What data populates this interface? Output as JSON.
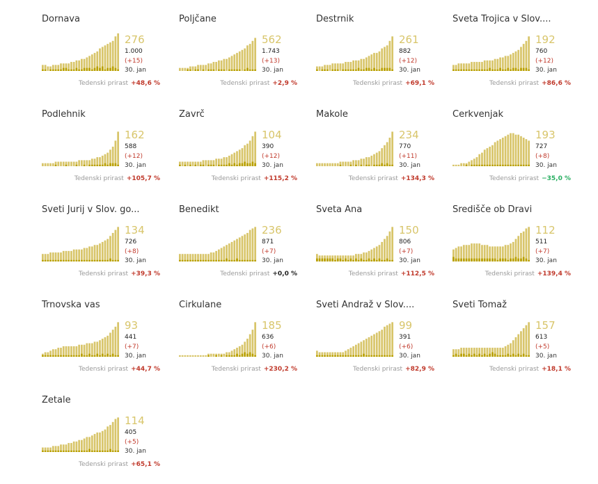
{
  "labels": {
    "weekly_growth": "Tedenski prirast",
    "date": "30. jan"
  },
  "colors": {
    "bar_total": "#d8c56a",
    "bar_daily": "#b9a000",
    "positive": "#c0392b",
    "negative": "#27ae60",
    "neutral": "#222222"
  },
  "chart_data": [
    {
      "type": "bar",
      "title": "Dornava",
      "current": "276",
      "cumulative": "1.000",
      "increase": "(+15)",
      "weekly_growth": "+48,6 %",
      "trend": "pos",
      "totals": [
        4,
        4,
        3,
        3,
        4,
        4,
        4,
        5,
        5,
        5,
        5,
        6,
        6,
        7,
        7,
        8,
        8,
        9,
        10,
        11,
        12,
        13,
        15,
        16,
        17,
        18,
        19,
        20,
        23,
        25
      ],
      "daily": [
        1,
        1,
        0,
        1,
        1,
        1,
        1,
        1,
        2,
        2,
        1,
        1,
        1,
        2,
        1,
        1,
        2,
        2,
        2,
        1,
        2,
        3,
        2,
        3,
        1,
        2,
        2,
        3,
        2,
        1
      ]
    },
    {
      "type": "bar",
      "title": "Poljčane",
      "current": "562",
      "cumulative": "1.743",
      "increase": "(+13)",
      "weekly_growth": "+2,9 %",
      "trend": "pos",
      "totals": [
        2,
        2,
        2,
        2,
        3,
        3,
        3,
        4,
        4,
        4,
        4,
        5,
        5,
        6,
        6,
        7,
        7,
        8,
        8,
        9,
        10,
        11,
        12,
        13,
        14,
        15,
        17,
        18,
        20,
        22
      ],
      "daily": [
        0,
        0,
        0,
        1,
        1,
        0,
        1,
        1,
        0,
        1,
        0,
        1,
        1,
        1,
        0,
        1,
        1,
        1,
        0,
        1,
        1,
        1,
        1,
        1,
        0,
        1,
        2,
        1,
        1,
        1
      ]
    },
    {
      "type": "bar",
      "title": "Destrnik",
      "current": "261",
      "cumulative": "882",
      "increase": "(+12)",
      "weekly_growth": "+69,1 %",
      "trend": "pos",
      "totals": [
        3,
        3,
        3,
        4,
        4,
        4,
        5,
        5,
        5,
        5,
        5,
        6,
        6,
        6,
        7,
        7,
        7,
        8,
        8,
        9,
        10,
        11,
        12,
        12,
        13,
        15,
        16,
        17,
        20,
        23
      ],
      "daily": [
        1,
        0,
        1,
        1,
        1,
        0,
        1,
        1,
        1,
        0,
        1,
        1,
        1,
        1,
        1,
        1,
        2,
        1,
        1,
        2,
        2,
        1,
        2,
        1,
        1,
        2,
        2,
        2,
        2,
        1
      ]
    },
    {
      "type": "bar",
      "title": "Sveta Trojica v Slov....",
      "current": "192",
      "cumulative": "760",
      "increase": "(+12)",
      "weekly_growth": "+86,6 %",
      "trend": "pos",
      "totals": [
        4,
        4,
        5,
        5,
        5,
        5,
        5,
        6,
        6,
        6,
        6,
        6,
        7,
        7,
        7,
        7,
        8,
        8,
        9,
        9,
        10,
        10,
        11,
        12,
        13,
        14,
        16,
        18,
        20,
        23
      ],
      "daily": [
        1,
        1,
        1,
        1,
        1,
        1,
        1,
        1,
        1,
        1,
        1,
        1,
        1,
        1,
        2,
        1,
        1,
        1,
        2,
        1,
        1,
        2,
        1,
        2,
        2,
        1,
        2,
        2,
        2,
        1
      ]
    },
    {
      "type": "bar",
      "title": "Podlehnik",
      "current": "162",
      "cumulative": "588",
      "increase": "(+12)",
      "weekly_growth": "+105,7 %",
      "trend": "pos",
      "totals": [
        2,
        2,
        2,
        2,
        2,
        3,
        3,
        3,
        3,
        3,
        3,
        3,
        3,
        3,
        4,
        4,
        4,
        4,
        4,
        5,
        5,
        6,
        6,
        7,
        8,
        9,
        11,
        13,
        17,
        23
      ],
      "daily": [
        0,
        0,
        0,
        0,
        0,
        1,
        0,
        0,
        0,
        1,
        0,
        0,
        0,
        1,
        0,
        0,
        1,
        0,
        1,
        1,
        1,
        1,
        1,
        1,
        2,
        1,
        2,
        2,
        2,
        1
      ]
    },
    {
      "type": "bar",
      "title": "Zavrč",
      "current": "104",
      "cumulative": "390",
      "increase": "(+12)",
      "weekly_growth": "+115,2 %",
      "trend": "pos",
      "totals": [
        3,
        3,
        3,
        3,
        3,
        3,
        3,
        3,
        3,
        4,
        4,
        4,
        4,
        4,
        5,
        5,
        5,
        6,
        6,
        7,
        8,
        9,
        10,
        11,
        12,
        14,
        15,
        17,
        20,
        23
      ],
      "daily": [
        1,
        0,
        1,
        0,
        1,
        0,
        1,
        0,
        1,
        1,
        0,
        1,
        1,
        1,
        0,
        1,
        1,
        1,
        1,
        2,
        1,
        2,
        1,
        2,
        2,
        3,
        2,
        2,
        3,
        2
      ]
    },
    {
      "type": "bar",
      "title": "Makole",
      "current": "234",
      "cumulative": "770",
      "increase": "(+11)",
      "weekly_growth": "+134,3 %",
      "trend": "pos",
      "totals": [
        2,
        2,
        2,
        2,
        2,
        2,
        2,
        2,
        2,
        3,
        3,
        3,
        3,
        3,
        4,
        4,
        4,
        5,
        5,
        6,
        6,
        7,
        8,
        9,
        10,
        12,
        14,
        16,
        19,
        23
      ],
      "daily": [
        0,
        0,
        0,
        0,
        0,
        0,
        0,
        0,
        0,
        1,
        0,
        0,
        0,
        1,
        0,
        1,
        0,
        1,
        0,
        1,
        1,
        0,
        1,
        1,
        1,
        2,
        1,
        2,
        1,
        1
      ]
    },
    {
      "type": "bar",
      "title": "Cerkvenjak",
      "current": "193",
      "cumulative": "727",
      "increase": "(+8)",
      "weekly_growth": "−35,0 %",
      "trend": "neg",
      "totals": [
        1,
        1,
        1,
        2,
        2,
        2,
        3,
        4,
        5,
        6,
        8,
        9,
        11,
        12,
        13,
        14,
        16,
        17,
        18,
        19,
        20,
        21,
        22,
        22,
        21,
        21,
        20,
        19,
        18,
        17
      ],
      "daily": [
        0,
        0,
        0,
        0,
        0,
        1,
        0,
        1,
        1,
        1,
        1,
        1,
        1,
        1,
        1,
        1,
        1,
        1,
        1,
        1,
        1,
        1,
        1,
        1,
        1,
        1,
        1,
        1,
        1,
        1
      ]
    },
    {
      "type": "bar",
      "title": "Sveti Jurij v Slov. go...",
      "current": "134",
      "cumulative": "726",
      "increase": "(+8)",
      "weekly_growth": "+39,3 %",
      "trend": "pos",
      "totals": [
        5,
        5,
        5,
        6,
        6,
        6,
        6,
        6,
        7,
        7,
        7,
        7,
        8,
        8,
        8,
        8,
        9,
        9,
        10,
        10,
        11,
        11,
        12,
        13,
        14,
        15,
        17,
        19,
        21,
        23
      ],
      "daily": [
        1,
        1,
        1,
        1,
        1,
        1,
        1,
        1,
        1,
        1,
        1,
        1,
        1,
        1,
        1,
        1,
        1,
        1,
        1,
        1,
        1,
        1,
        1,
        1,
        1,
        1,
        2,
        1,
        1,
        1
      ]
    },
    {
      "type": "bar",
      "title": "Benedikt",
      "current": "236",
      "cumulative": "871",
      "increase": "(+7)",
      "weekly_growth": "+0,0 %",
      "trend": "zero",
      "totals": [
        5,
        5,
        5,
        5,
        5,
        5,
        5,
        5,
        5,
        5,
        5,
        5,
        6,
        6,
        7,
        8,
        9,
        10,
        11,
        12,
        13,
        14,
        15,
        16,
        17,
        18,
        19,
        21,
        22,
        23
      ],
      "daily": [
        1,
        1,
        1,
        1,
        1,
        1,
        1,
        1,
        1,
        1,
        1,
        1,
        1,
        1,
        1,
        1,
        1,
        1,
        2,
        1,
        1,
        1,
        2,
        1,
        1,
        1,
        1,
        1,
        1,
        1
      ]
    },
    {
      "type": "bar",
      "title": "Sveta Ana",
      "current": "150",
      "cumulative": "806",
      "increase": "(+7)",
      "weekly_growth": "+112,5 %",
      "trend": "pos",
      "totals": [
        5,
        4,
        4,
        4,
        4,
        4,
        4,
        4,
        4,
        4,
        4,
        4,
        4,
        4,
        4,
        5,
        5,
        5,
        6,
        6,
        7,
        8,
        9,
        10,
        11,
        13,
        15,
        17,
        20,
        23
      ],
      "daily": [
        2,
        2,
        2,
        2,
        2,
        2,
        2,
        1,
        2,
        2,
        1,
        2,
        1,
        2,
        1,
        2,
        1,
        2,
        1,
        1,
        2,
        1,
        2,
        1,
        2,
        1,
        1,
        2,
        1,
        1
      ]
    },
    {
      "type": "bar",
      "title": "Središče ob Dravi",
      "current": "112",
      "cumulative": "511",
      "increase": "(+7)",
      "weekly_growth": "+139,4 %",
      "trend": "pos",
      "totals": [
        8,
        9,
        10,
        10,
        11,
        11,
        11,
        12,
        12,
        12,
        12,
        11,
        11,
        11,
        10,
        10,
        10,
        10,
        10,
        10,
        11,
        11,
        12,
        13,
        15,
        17,
        19,
        20,
        22,
        23
      ],
      "daily": [
        3,
        2,
        2,
        2,
        2,
        2,
        2,
        2,
        2,
        2,
        2,
        2,
        2,
        2,
        2,
        2,
        2,
        1,
        2,
        2,
        2,
        1,
        2,
        2,
        3,
        2,
        2,
        3,
        2,
        1
      ]
    },
    {
      "type": "bar",
      "title": "Trnovska vas",
      "current": "93",
      "cumulative": "441",
      "increase": "(+7)",
      "weekly_growth": "+44,7 %",
      "trend": "pos",
      "totals": [
        2,
        3,
        3,
        4,
        5,
        5,
        6,
        6,
        7,
        7,
        7,
        7,
        7,
        7,
        8,
        8,
        8,
        9,
        9,
        9,
        10,
        10,
        11,
        12,
        13,
        14,
        16,
        18,
        20,
        23
      ],
      "daily": [
        1,
        1,
        1,
        1,
        1,
        1,
        1,
        1,
        1,
        1,
        1,
        1,
        1,
        1,
        1,
        2,
        1,
        1,
        2,
        1,
        1,
        2,
        1,
        2,
        1,
        2,
        1,
        2,
        1,
        1
      ]
    },
    {
      "type": "bar",
      "title": "Cirkulane",
      "current": "185",
      "cumulative": "636",
      "increase": "(+6)",
      "weekly_growth": "+230,2 %",
      "trend": "pos",
      "totals": [
        1,
        1,
        1,
        1,
        1,
        1,
        1,
        1,
        1,
        1,
        1,
        2,
        2,
        2,
        2,
        2,
        2,
        2,
        3,
        3,
        4,
        5,
        6,
        7,
        8,
        10,
        12,
        15,
        18,
        23
      ],
      "daily": [
        0,
        0,
        0,
        0,
        0,
        0,
        0,
        0,
        0,
        0,
        0,
        1,
        0,
        0,
        1,
        0,
        1,
        0,
        1,
        1,
        1,
        1,
        2,
        1,
        2,
        3,
        2,
        3,
        2,
        1
      ]
    },
    {
      "type": "bar",
      "title": "Sveti Andraž v Slov....",
      "current": "99",
      "cumulative": "391",
      "increase": "(+6)",
      "weekly_growth": "+82,9 %",
      "trend": "pos",
      "totals": [
        4,
        3,
        3,
        3,
        3,
        3,
        3,
        3,
        3,
        3,
        3,
        4,
        5,
        6,
        7,
        8,
        9,
        10,
        11,
        12,
        13,
        14,
        15,
        16,
        17,
        18,
        20,
        21,
        22,
        23
      ],
      "daily": [
        1,
        1,
        1,
        1,
        1,
        1,
        1,
        1,
        1,
        1,
        1,
        1,
        1,
        1,
        1,
        1,
        1,
        1,
        2,
        1,
        1,
        1,
        1,
        1,
        1,
        1,
        1,
        1,
        1,
        1
      ]
    },
    {
      "type": "bar",
      "title": "Sveti Tomaž",
      "current": "157",
      "cumulative": "613",
      "increase": "(+5)",
      "weekly_growth": "+18,1 %",
      "trend": "pos",
      "totals": [
        5,
        5,
        5,
        6,
        6,
        6,
        6,
        6,
        6,
        6,
        6,
        6,
        6,
        6,
        6,
        6,
        6,
        6,
        6,
        6,
        7,
        8,
        9,
        11,
        13,
        15,
        17,
        19,
        21,
        23
      ],
      "daily": [
        1,
        2,
        1,
        2,
        2,
        1,
        2,
        1,
        2,
        1,
        2,
        1,
        2,
        1,
        2,
        3,
        2,
        1,
        1,
        1,
        1,
        2,
        1,
        2,
        1,
        2,
        1,
        2,
        1,
        1
      ]
    },
    {
      "type": "bar",
      "title": "Žetale",
      "current": "114",
      "cumulative": "405",
      "increase": "(+5)",
      "weekly_growth": "+65,1 %",
      "trend": "pos",
      "totals": [
        3,
        3,
        3,
        3,
        4,
        4,
        4,
        5,
        5,
        5,
        6,
        6,
        7,
        7,
        8,
        8,
        9,
        10,
        10,
        11,
        12,
        13,
        13,
        14,
        15,
        17,
        18,
        20,
        22,
        23
      ],
      "daily": [
        1,
        1,
        1,
        1,
        1,
        1,
        1,
        1,
        1,
        1,
        1,
        1,
        1,
        1,
        1,
        1,
        1,
        1,
        2,
        1,
        1,
        1,
        1,
        1,
        1,
        1,
        2,
        1,
        1,
        1
      ]
    }
  ]
}
